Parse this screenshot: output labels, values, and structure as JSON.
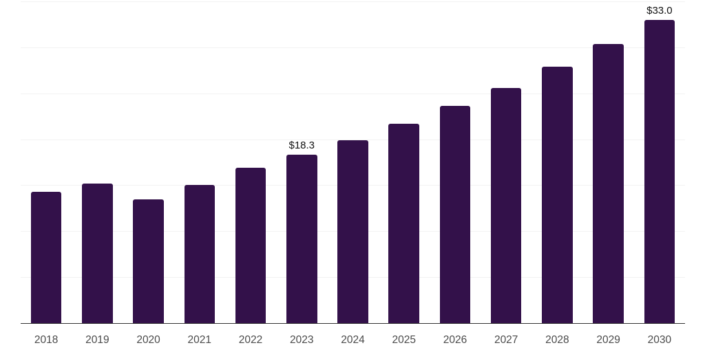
{
  "chart_data": {
    "type": "bar",
    "title": "",
    "xlabel": "",
    "ylabel": "",
    "categories": [
      "2018",
      "2019",
      "2020",
      "2021",
      "2022",
      "2023",
      "2024",
      "2025",
      "2026",
      "2027",
      "2028",
      "2029",
      "2030"
    ],
    "values": [
      14.3,
      15.2,
      13.5,
      15.0,
      16.9,
      18.3,
      19.9,
      21.7,
      23.6,
      25.6,
      27.9,
      30.4,
      33.0
    ],
    "data_labels": {
      "2023": "$18.3",
      "2030": "$33.0"
    },
    "ylim": [
      0,
      35
    ],
    "gridline_step": 5,
    "grid": true,
    "legend": false,
    "bar_width_fraction": 0.6,
    "colors": {
      "bar": "#33114a",
      "gridline": "#f2f2f2",
      "axis_line": "#333333",
      "tick_label": "#4a4a4a",
      "value_label": "#111111",
      "background": "#ffffff"
    }
  }
}
